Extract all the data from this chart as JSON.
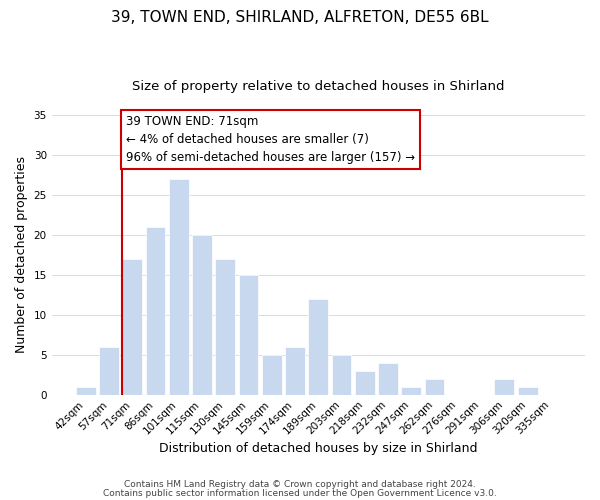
{
  "title": "39, TOWN END, SHIRLAND, ALFRETON, DE55 6BL",
  "subtitle": "Size of property relative to detached houses in Shirland",
  "xlabel": "Distribution of detached houses by size in Shirland",
  "ylabel": "Number of detached properties",
  "categories": [
    "42sqm",
    "57sqm",
    "71sqm",
    "86sqm",
    "101sqm",
    "115sqm",
    "130sqm",
    "145sqm",
    "159sqm",
    "174sqm",
    "189sqm",
    "203sqm",
    "218sqm",
    "232sqm",
    "247sqm",
    "262sqm",
    "276sqm",
    "291sqm",
    "306sqm",
    "320sqm",
    "335sqm"
  ],
  "values": [
    1,
    6,
    17,
    21,
    27,
    20,
    17,
    15,
    5,
    6,
    12,
    5,
    3,
    4,
    1,
    2,
    0,
    0,
    2,
    1,
    0
  ],
  "bar_color": "#c8d8ee",
  "redline_index": 2,
  "redline_color": "#cc0000",
  "ylim": [
    0,
    35
  ],
  "yticks": [
    0,
    5,
    10,
    15,
    20,
    25,
    30,
    35
  ],
  "annotation_title": "39 TOWN END: 71sqm",
  "annotation_line1": "← 4% of detached houses are smaller (7)",
  "annotation_line2": "96% of semi-detached houses are larger (157) →",
  "footer1": "Contains HM Land Registry data © Crown copyright and database right 2024.",
  "footer2": "Contains public sector information licensed under the Open Government Licence v3.0.",
  "title_fontsize": 11,
  "subtitle_fontsize": 9.5,
  "axis_label_fontsize": 9,
  "tick_fontsize": 7.5,
  "annotation_fontsize": 8.5,
  "footer_fontsize": 6.5,
  "grid_color": "#d5dce8"
}
